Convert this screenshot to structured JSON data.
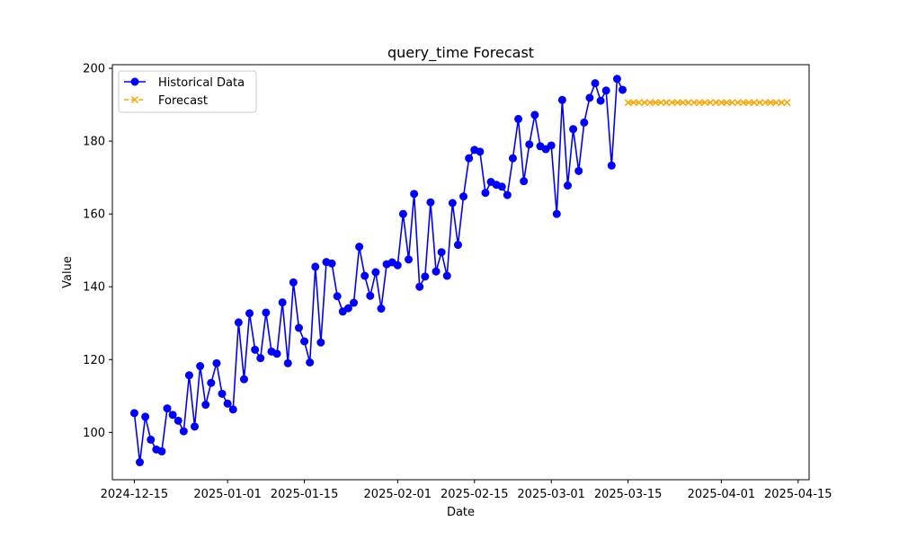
{
  "chart_data": {
    "type": "line",
    "title": "query_time Forecast",
    "xlabel": "Date",
    "ylabel": "Value",
    "x_axis_type": "date",
    "xlim": [
      "2024-12-11",
      "2025-04-17"
    ],
    "ylim": [
      87,
      201
    ],
    "x_ticks": [
      "2024-12-15",
      "2025-01-01",
      "2025-01-15",
      "2025-02-01",
      "2025-02-15",
      "2025-03-01",
      "2025-03-15",
      "2025-04-01",
      "2025-04-15"
    ],
    "y_ticks": [
      100,
      120,
      140,
      160,
      180,
      200
    ],
    "grid": false,
    "legend_position": "upper left",
    "series": [
      {
        "name": "Historical Data",
        "color": "#0000ff",
        "line_style": "solid",
        "marker": "circle",
        "x": [
          "2024-12-15",
          "2024-12-16",
          "2024-12-17",
          "2024-12-18",
          "2024-12-19",
          "2024-12-20",
          "2024-12-21",
          "2024-12-22",
          "2024-12-23",
          "2024-12-24",
          "2024-12-25",
          "2024-12-26",
          "2024-12-27",
          "2024-12-28",
          "2024-12-29",
          "2024-12-30",
          "2024-12-31",
          "2025-01-01",
          "2025-01-02",
          "2025-01-03",
          "2025-01-04",
          "2025-01-05",
          "2025-01-06",
          "2025-01-07",
          "2025-01-08",
          "2025-01-09",
          "2025-01-10",
          "2025-01-11",
          "2025-01-12",
          "2025-01-13",
          "2025-01-14",
          "2025-01-15",
          "2025-01-16",
          "2025-01-17",
          "2025-01-18",
          "2025-01-19",
          "2025-01-20",
          "2025-01-21",
          "2025-01-22",
          "2025-01-23",
          "2025-01-24",
          "2025-01-25",
          "2025-01-26",
          "2025-01-27",
          "2025-01-28",
          "2025-01-29",
          "2025-01-30",
          "2025-01-31",
          "2025-02-01",
          "2025-02-02",
          "2025-02-03",
          "2025-02-04",
          "2025-02-05",
          "2025-02-06",
          "2025-02-07",
          "2025-02-08",
          "2025-02-09",
          "2025-02-10",
          "2025-02-11",
          "2025-02-12",
          "2025-02-13",
          "2025-02-14",
          "2025-02-15",
          "2025-02-16",
          "2025-02-17",
          "2025-02-18",
          "2025-02-19",
          "2025-02-20",
          "2025-02-21",
          "2025-02-22",
          "2025-02-23",
          "2025-02-24",
          "2025-02-25",
          "2025-02-26",
          "2025-02-27",
          "2025-02-28",
          "2025-03-01",
          "2025-03-02",
          "2025-03-03",
          "2025-03-04",
          "2025-03-05",
          "2025-03-06",
          "2025-03-07",
          "2025-03-08",
          "2025-03-09",
          "2025-03-10",
          "2025-03-11",
          "2025-03-12",
          "2025-03-13",
          "2025-03-14"
        ],
        "values": [
          105.3,
          91.8,
          104.3,
          98.0,
          95.3,
          94.8,
          106.6,
          104.8,
          103.2,
          100.3,
          115.7,
          101.6,
          118.2,
          107.6,
          113.6,
          119.0,
          110.6,
          107.9,
          106.3,
          130.2,
          114.6,
          132.7,
          122.7,
          120.4,
          132.9,
          122.2,
          121.6,
          135.7,
          119.0,
          141.2,
          128.7,
          125.0,
          119.2,
          145.5,
          124.7,
          146.8,
          146.4,
          137.4,
          133.2,
          134.1,
          135.6,
          151.0,
          143.0,
          137.5,
          144.0,
          134.0,
          146.2,
          146.7,
          145.9,
          160.0,
          147.5,
          165.5,
          140.0,
          142.8,
          163.2,
          144.2,
          149.5,
          143.0,
          163.0,
          151.5,
          164.8,
          175.3,
          177.6,
          177.1,
          165.8,
          168.8,
          168.0,
          167.5,
          165.2,
          175.3,
          186.1,
          169.0,
          179.1,
          187.2,
          178.6,
          177.8,
          178.8,
          160.0,
          191.3,
          167.8,
          183.3,
          171.8,
          185.1,
          191.9,
          195.9,
          191.1,
          193.9,
          173.3,
          197.1,
          194.1
        ]
      },
      {
        "name": "Forecast",
        "color": "#ffa500",
        "line_style": "dashed",
        "marker": "x",
        "x": [
          "2025-03-15",
          "2025-03-16",
          "2025-03-17",
          "2025-03-18",
          "2025-03-19",
          "2025-03-20",
          "2025-03-21",
          "2025-03-22",
          "2025-03-23",
          "2025-03-24",
          "2025-03-25",
          "2025-03-26",
          "2025-03-27",
          "2025-03-28",
          "2025-03-29",
          "2025-03-30",
          "2025-03-31",
          "2025-04-01",
          "2025-04-02",
          "2025-04-03",
          "2025-04-04",
          "2025-04-05",
          "2025-04-06",
          "2025-04-07",
          "2025-04-08",
          "2025-04-09",
          "2025-04-10",
          "2025-04-11",
          "2025-04-12",
          "2025-04-13"
        ],
        "values": [
          190.6,
          190.6,
          190.6,
          190.6,
          190.6,
          190.6,
          190.6,
          190.6,
          190.6,
          190.6,
          190.6,
          190.6,
          190.6,
          190.6,
          190.6,
          190.6,
          190.6,
          190.6,
          190.6,
          190.6,
          190.6,
          190.6,
          190.6,
          190.6,
          190.6,
          190.6,
          190.6,
          190.6,
          190.6,
          190.6
        ]
      }
    ]
  }
}
